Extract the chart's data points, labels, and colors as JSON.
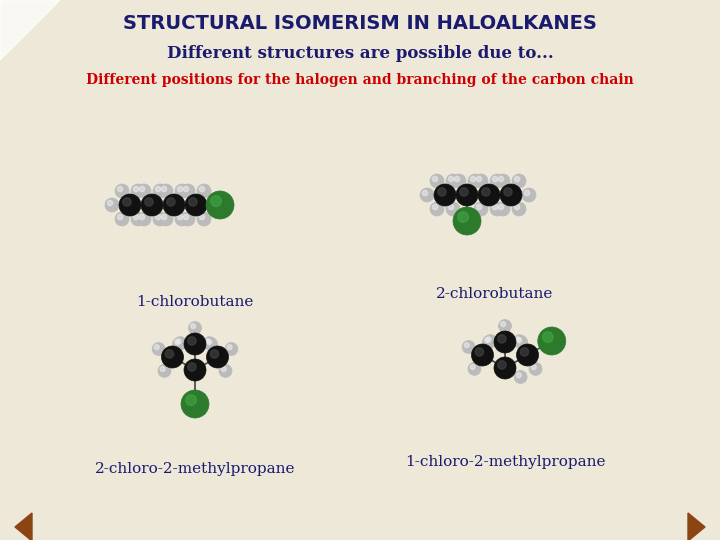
{
  "title": "STRUCTURAL ISOMERISM IN HALOALKANES",
  "subtitle": "Different structures are possible due to...",
  "subtext": "Different positions for the halogen and branching of the carbon chain",
  "bg_color": "#ede8d8",
  "title_color": "#1a1a6e",
  "subtitle_color": "#1a1a6e",
  "subtext_color": "#cc0000",
  "labels": [
    "1-chlorobutane",
    "2-chlorobutane",
    "2-chloro-2-methylpropane",
    "1-chloro-2-methylpropane"
  ],
  "label_color": "#1a1a6e",
  "carbon_color": "#111111",
  "hydrogen_color": "#bbbbbb",
  "chlorine_color": "#2d7a2d",
  "bond_color": "#444444",
  "nav_arrow_color": "#8b4513"
}
